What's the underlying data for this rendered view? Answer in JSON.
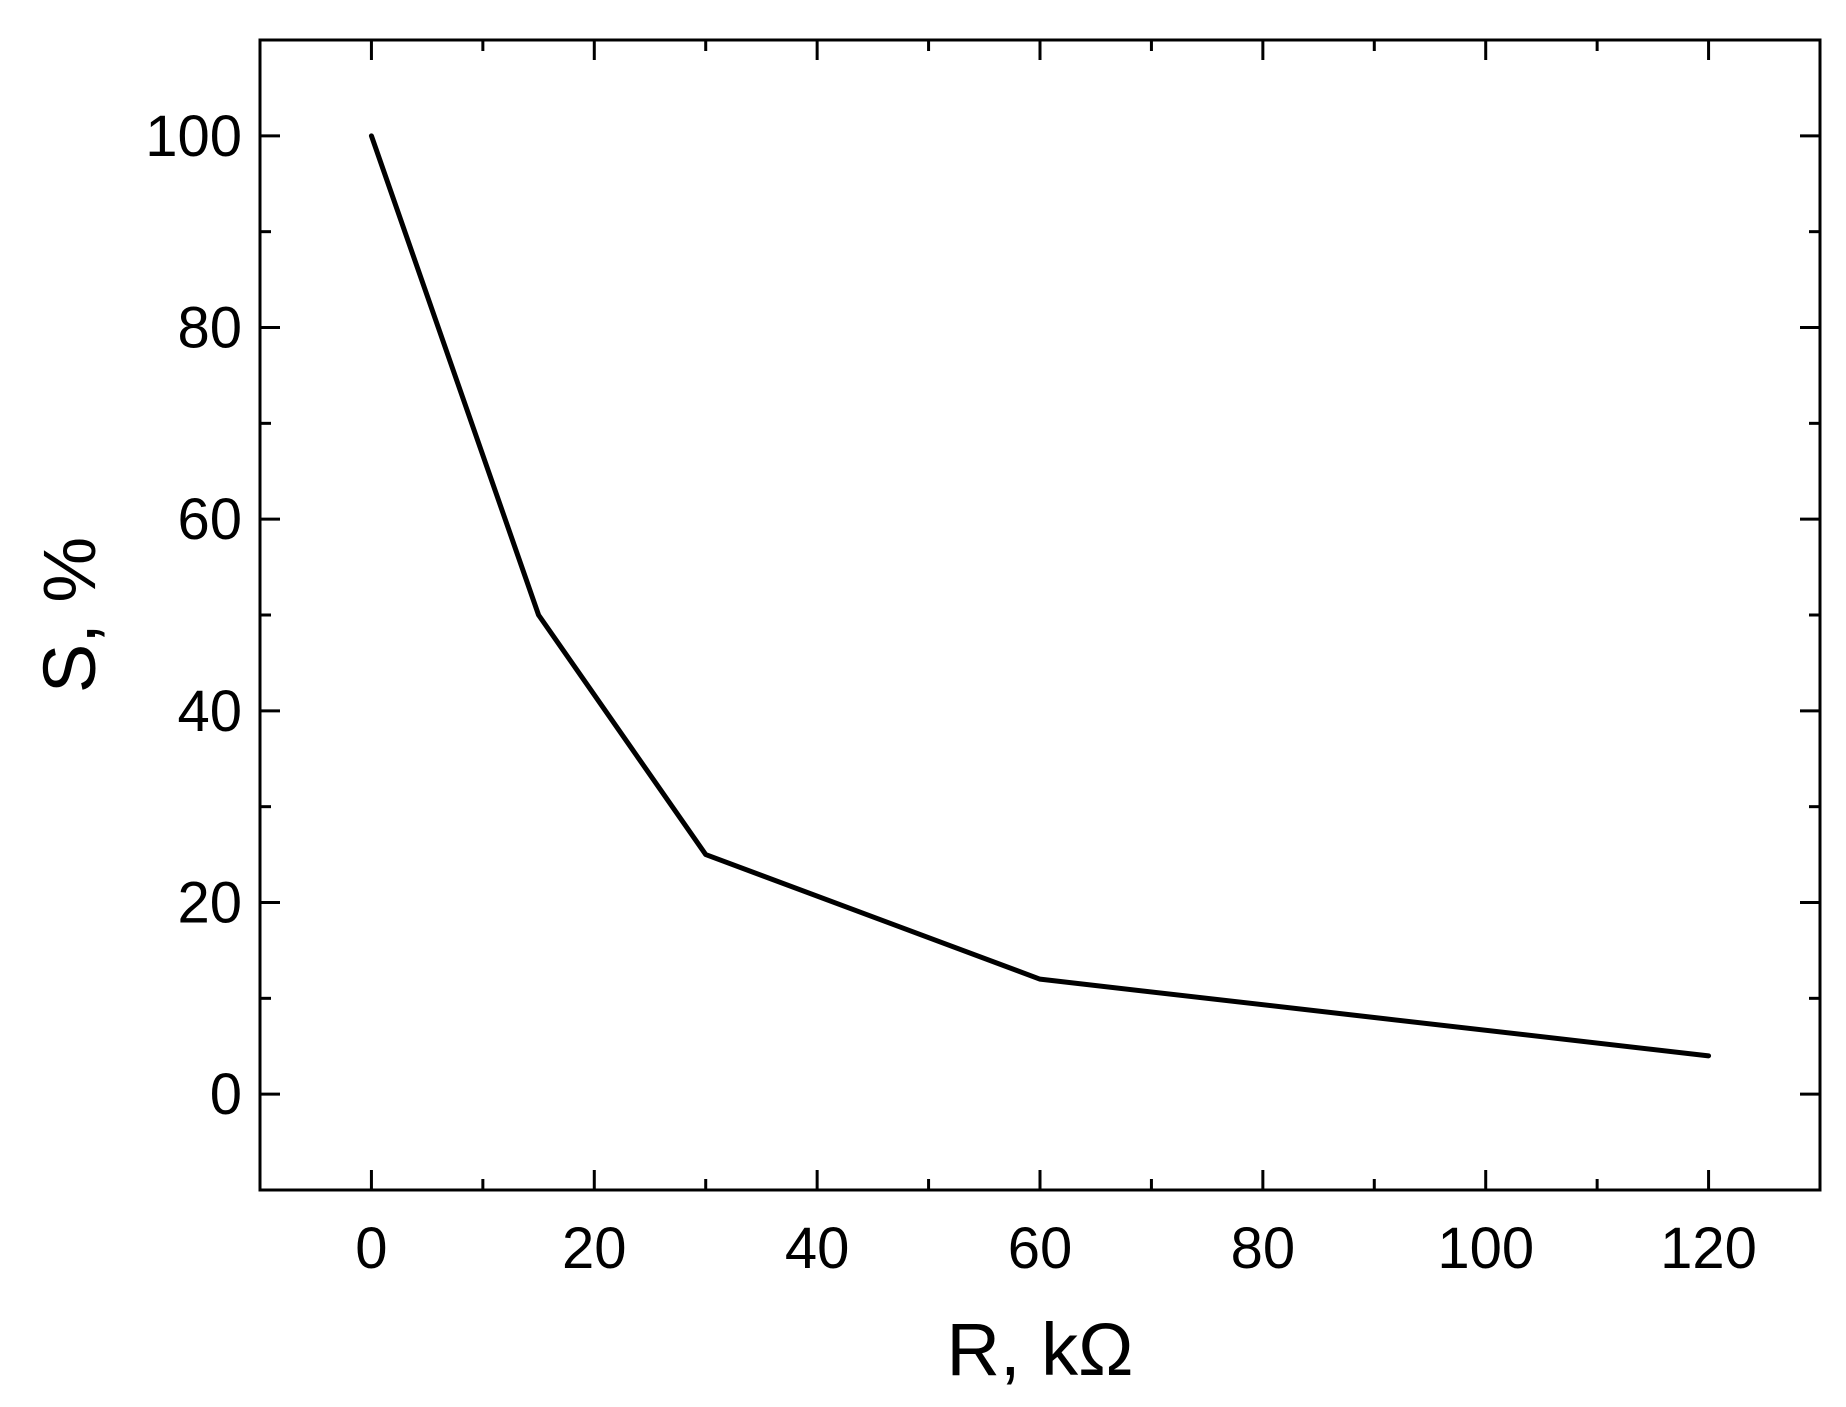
{
  "chart_data": {
    "type": "line",
    "title": "",
    "xlabel": "R, kΩ",
    "ylabel": "S, %",
    "xlim": [
      -10,
      130
    ],
    "ylim": [
      -10,
      110
    ],
    "xticks": [
      0,
      20,
      40,
      60,
      80,
      100,
      120
    ],
    "xticks_minor": [
      10,
      30,
      50,
      70,
      90,
      110
    ],
    "yticks": [
      0,
      20,
      40,
      60,
      80,
      100
    ],
    "yticks_minor": [
      10,
      30,
      50,
      70,
      90
    ],
    "grid": false,
    "legend": "none",
    "series": [
      {
        "color": "#000000",
        "x": [
          0,
          15,
          30,
          60,
          120
        ],
        "y": [
          100,
          50,
          25,
          12,
          4
        ]
      }
    ]
  }
}
